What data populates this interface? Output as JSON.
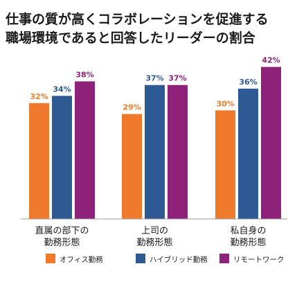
{
  "title_lines": [
    "仕事の質が高くコラボレーションを促進する",
    "職場環境であると回答したリーダーの割合"
  ],
  "colors": {
    "office": "#f07a2c",
    "hybrid": "#2d5a92",
    "remote": "#8e2179",
    "axis": "#999999",
    "text": "#1a1a1a"
  },
  "chart_data": {
    "type": "bar",
    "title": "仕事の質が高くコラボレーションを促進する職場環境であると回答したリーダーの割合",
    "categories": [
      [
        "直属の部下の",
        "勤務形態"
      ],
      [
        "上司の",
        "勤務形態"
      ],
      [
        "私自身の",
        "勤務形態"
      ]
    ],
    "series": [
      {
        "name": "オフィス勤務",
        "values": [
          32,
          29,
          30
        ],
        "labels": [
          "32%",
          "29%",
          "30%"
        ],
        "color_key": "office"
      },
      {
        "name": "ハイブリッド勤務",
        "values": [
          34,
          37,
          36
        ],
        "labels": [
          "34%",
          "37%",
          "36%"
        ],
        "color_key": "hybrid"
      },
      {
        "name": "リモートワーク",
        "values": [
          38,
          37,
          42
        ],
        "labels": [
          "38%",
          "37%",
          "42%"
        ],
        "color_key": "remote"
      }
    ],
    "ylim": [
      0,
      49
    ],
    "grid": false,
    "legend_position": "bottom"
  }
}
